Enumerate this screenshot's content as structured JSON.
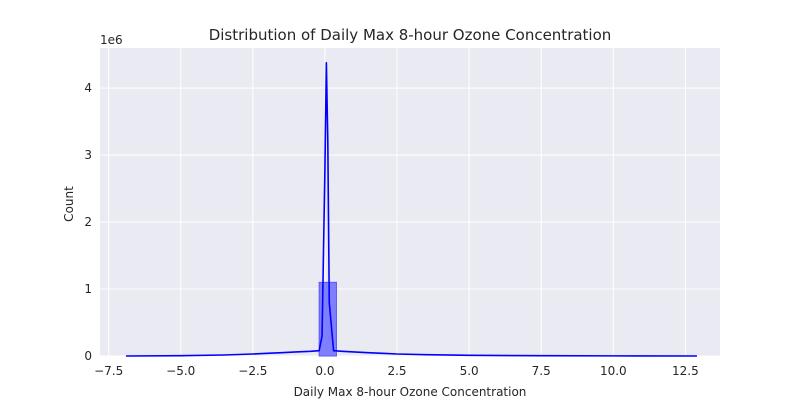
{
  "chart_data": {
    "type": "bar",
    "title": "Distribution of Daily Max 8-hour Ozone Concentration",
    "xlabel": "Daily Max 8-hour Ozone Concentration",
    "ylabel": "Count",
    "y_offset_text": "1e6",
    "xlim": [
      -7.8,
      13.7
    ],
    "ylim": [
      0,
      4.6
    ],
    "x_ticks": [
      -7.5,
      -5.0,
      -2.5,
      0.0,
      2.5,
      5.0,
      7.5,
      10.0,
      12.5
    ],
    "x_tick_labels": [
      "−7.5",
      "−5.0",
      "−2.5",
      "0.0",
      "2.5",
      "5.0",
      "7.5",
      "10.0",
      "12.5"
    ],
    "y_ticks": [
      0,
      1,
      2,
      3,
      4
    ],
    "y_tick_labels": [
      "0",
      "1",
      "2",
      "3",
      "4"
    ],
    "grid": true,
    "legend": "none",
    "series": [
      {
        "type": "histogram",
        "bins": [
          {
            "x0": -0.2,
            "x1": 0.4,
            "count": 1.1
          }
        ]
      },
      {
        "type": "line",
        "x": [
          -6.9,
          -5.0,
          -3.5,
          -2.5,
          -2.0,
          -1.5,
          -1.0,
          -0.5,
          -0.2,
          -0.1,
          0.0,
          0.05,
          0.1,
          0.15,
          0.3,
          0.6,
          1.0,
          1.5,
          2.0,
          2.5,
          3.5,
          5.0,
          7.5,
          10.0,
          12.9
        ],
        "y": [
          0.0,
          0.005,
          0.015,
          0.03,
          0.04,
          0.05,
          0.06,
          0.07,
          0.08,
          0.3,
          2.8,
          4.38,
          3.2,
          0.8,
          0.08,
          0.07,
          0.06,
          0.05,
          0.04,
          0.03,
          0.02,
          0.01,
          0.005,
          0.002,
          0.0
        ]
      }
    ],
    "colors": {
      "background": "#eaeaf2",
      "grid": "#ffffff",
      "bar_fill": "#6c6cff",
      "bar_edge": "#5a5af0",
      "line": "#0000ff"
    }
  }
}
